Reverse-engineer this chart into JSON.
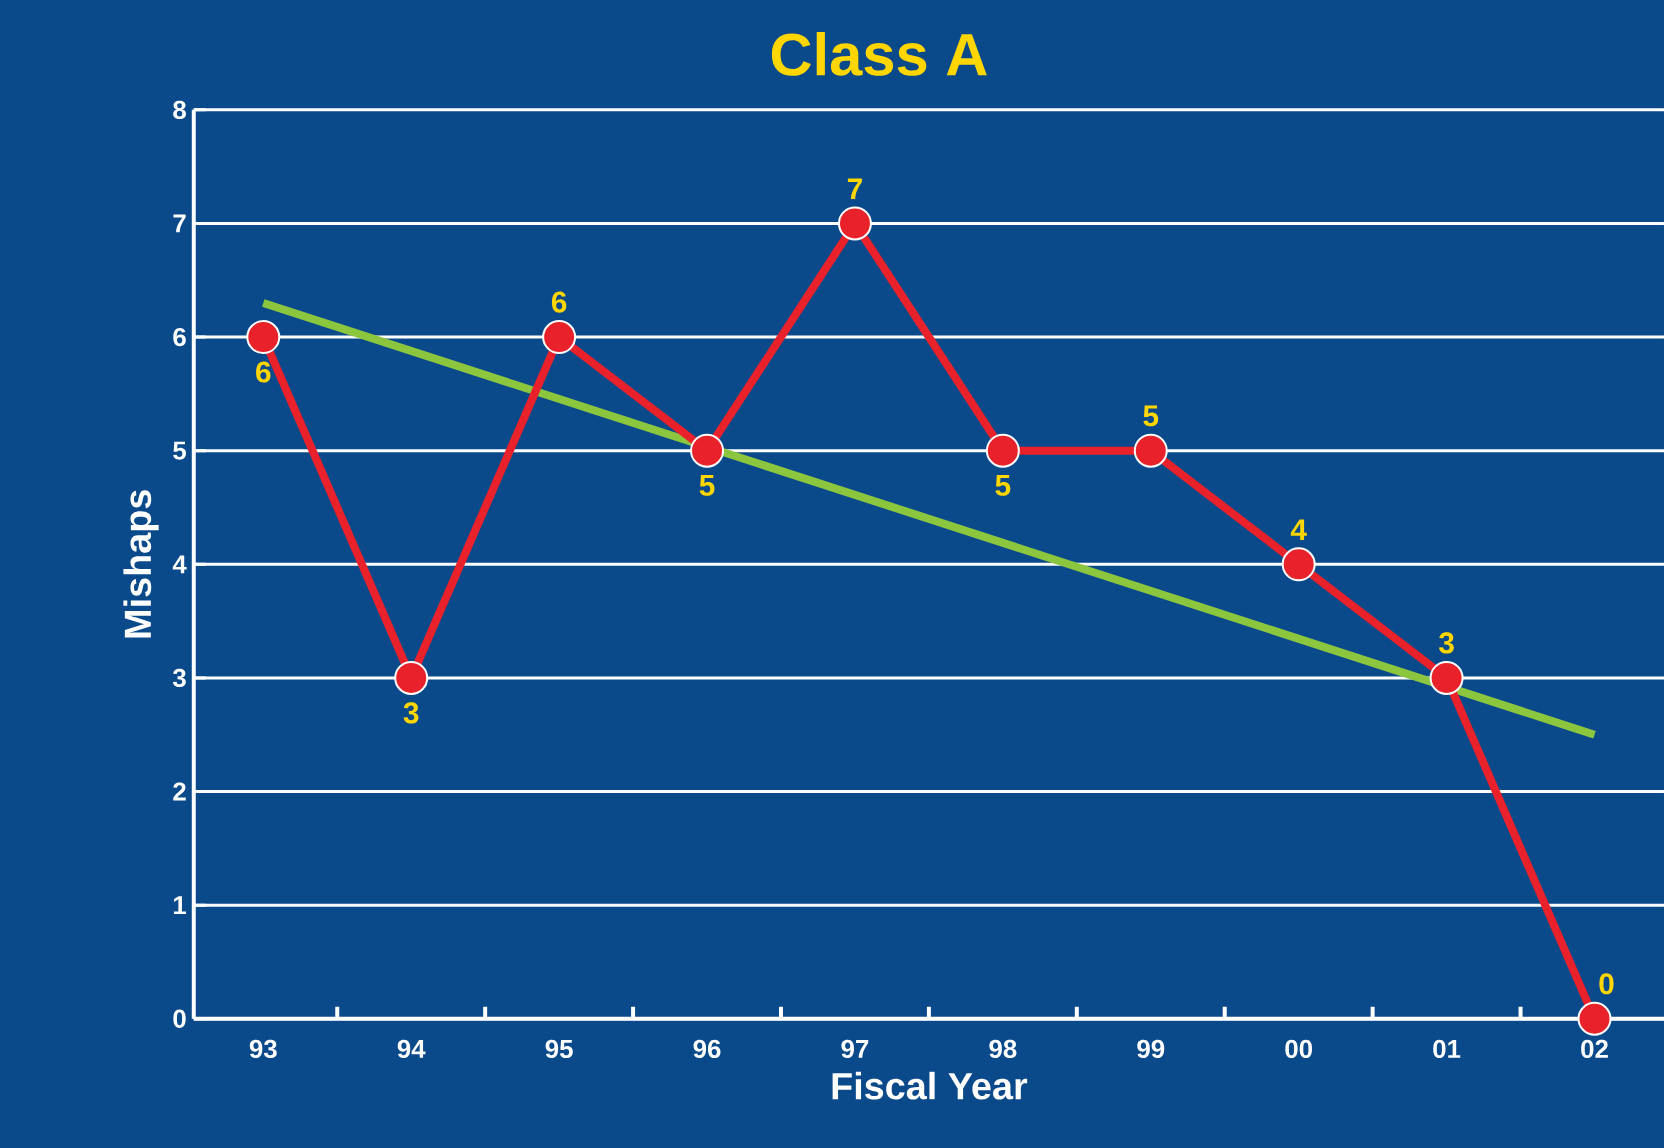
{
  "chart_data": {
    "type": "line",
    "title": "Class A",
    "xlabel": "Fiscal Year",
    "ylabel": "Mishaps",
    "categories": [
      "93",
      "94",
      "95",
      "96",
      "97",
      "98",
      "99",
      "00",
      "01",
      "02"
    ],
    "series": [
      {
        "color": "#e8212b",
        "values": [
          6,
          3,
          6,
          5,
          7,
          5,
          5,
          4,
          3,
          0
        ]
      },
      {
        "type": "line",
        "color": "#8cc63f",
        "x": [
          "93",
          "02"
        ],
        "values": [
          6.3,
          2.5
        ],
        "marker": "none",
        "data_labels": false
      }
    ],
    "ylim": [
      0,
      8
    ],
    "yticks": [
      0,
      1,
      2,
      3,
      4,
      5,
      6,
      7,
      8
    ],
    "grid": "y",
    "marker": "circle",
    "line_style": "solid",
    "data_labels": true
  }
}
